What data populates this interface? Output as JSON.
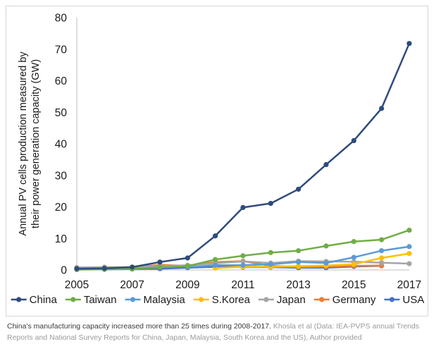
{
  "chart_data": {
    "type": "line",
    "title": "",
    "xlabel": "",
    "ylabel": "Annual PV cells production measured by their power generation capacity (GW)",
    "ylabel_lines": [
      "Annual PV cells production measured by",
      "their power generation capacity (GW)"
    ],
    "x": [
      2005,
      2006,
      2007,
      2008,
      2009,
      2010,
      2011,
      2012,
      2013,
      2014,
      2015,
      2016,
      2017
    ],
    "x_tick_labels": [
      "2005",
      "2007",
      "2009",
      "2011",
      "2013",
      "2015",
      "2017"
    ],
    "x_tick_values": [
      2005,
      2007,
      2009,
      2011,
      2013,
      2015,
      2017
    ],
    "y_tick_labels": [
      "0",
      "10",
      "20",
      "30",
      "40",
      "50",
      "60",
      "70",
      "80"
    ],
    "ylim": [
      0,
      80
    ],
    "xlim": [
      2005,
      2017
    ],
    "grid": false,
    "legend_position": "bottom",
    "series": [
      {
        "name": "China",
        "color": "#2f4b7c",
        "x": [
          2005,
          2006,
          2007,
          2008,
          2009,
          2010,
          2011,
          2012,
          2013,
          2014,
          2015,
          2016,
          2017
        ],
        "values": [
          0.4,
          0.5,
          0.9,
          2.5,
          3.8,
          10.8,
          19.8,
          21.1,
          25.6,
          33.4,
          41.0,
          51.2,
          71.8
        ]
      },
      {
        "name": "Taiwan",
        "color": "#70ad47",
        "x": [
          2005,
          2006,
          2007,
          2008,
          2009,
          2010,
          2011,
          2012,
          2013,
          2014,
          2015,
          2016,
          2017
        ],
        "values": [
          0.1,
          0.2,
          0.4,
          0.8,
          1.2,
          3.3,
          4.5,
          5.5,
          6.1,
          7.6,
          9.0,
          9.6,
          12.6
        ]
      },
      {
        "name": "Malaysia",
        "color": "#5b9bd5",
        "x": [
          2009,
          2010,
          2011,
          2012,
          2013,
          2014,
          2015,
          2016,
          2017
        ],
        "values": [
          0.9,
          1.5,
          1.5,
          1.8,
          2.5,
          2.2,
          4.0,
          6.1,
          7.4
        ]
      },
      {
        "name": "S.Korea",
        "color": "#ffc000",
        "x": [
          2010,
          2011,
          2012,
          2013,
          2014,
          2015,
          2016,
          2017
        ],
        "values": [
          0.6,
          1.0,
          1.0,
          1.2,
          1.4,
          1.8,
          3.8,
          5.2
        ]
      },
      {
        "name": "Japan",
        "color": "#a5a5a5",
        "x": [
          2005,
          2006,
          2007,
          2008,
          2009,
          2010,
          2011,
          2012,
          2013,
          2014,
          2015,
          2016,
          2017
        ],
        "values": [
          0.8,
          0.9,
          0.9,
          1.2,
          1.5,
          2.1,
          2.7,
          2.2,
          2.8,
          2.7,
          2.6,
          2.3,
          2.0
        ]
      },
      {
        "name": "Germany",
        "color": "#ed7d31",
        "x": [
          2005,
          2006,
          2007,
          2008,
          2009,
          2010,
          2011,
          2012,
          2013,
          2014,
          2015,
          2016
        ],
        "values": [
          0.3,
          0.5,
          0.8,
          1.6,
          1.3,
          2.5,
          2.8,
          1.3,
          0.9,
          1.0,
          1.3,
          1.4
        ]
      },
      {
        "name": "USA",
        "color": "#4472c4",
        "x": [
          2005,
          2006,
          2007,
          2008,
          2009,
          2010,
          2011,
          2012,
          2013,
          2014,
          2015,
          2016
        ],
        "values": [
          0.2,
          0.2,
          0.3,
          0.4,
          0.7,
          1.0,
          0.9,
          0.9,
          0.7,
          0.7,
          1.1,
          1.3
        ]
      }
    ]
  },
  "caption": {
    "text": "China's manufacturing capacity increased more than 25 times during 2008-2017.",
    "credit": "Khosla et al (Data: IEA-PVPS annual Trends Reports and National Survey Reports for China, Japan, Malaysia, South Korea and the US), Author provided"
  }
}
